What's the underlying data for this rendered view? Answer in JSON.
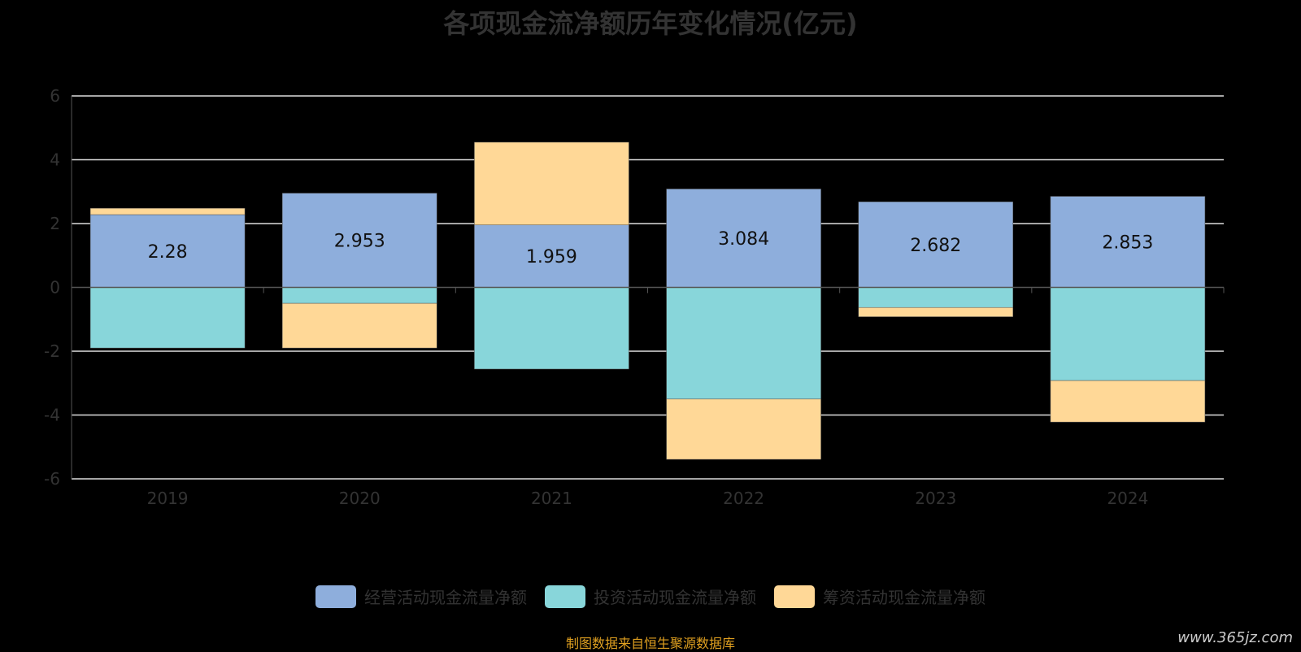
{
  "chart_data": {
    "type": "bar",
    "stacked": true,
    "title": "各项现金流净额历年变化情况(亿元)",
    "categories": [
      "2019",
      "2020",
      "2021",
      "2022",
      "2023",
      "2024"
    ],
    "series": [
      {
        "name": "经营活动现金流量净额",
        "color": "#8eaedc",
        "values": [
          2.28,
          2.953,
          1.959,
          3.084,
          2.682,
          2.853
        ],
        "labels": [
          "2.28",
          "2.953",
          "1.959",
          "3.084",
          "2.682",
          "2.853"
        ]
      },
      {
        "name": "投资活动现金流量净额",
        "color": "#88d6da",
        "values": [
          -1.9,
          -0.5,
          -2.56,
          -3.5,
          -0.63,
          -2.92
        ]
      },
      {
        "name": "筹资活动现金流量净额",
        "color": "#ffd897",
        "values": [
          0.2,
          -1.4,
          2.59,
          -1.89,
          -0.29,
          -1.3
        ]
      }
    ],
    "ylim": [
      -6,
      6
    ],
    "yticks": [
      6,
      4,
      2,
      0,
      -2,
      -4,
      -6
    ],
    "grid": true,
    "legend_position": "bottom"
  },
  "source": "制图数据来自恒生聚源数据库",
  "watermark": "www.365jz.com"
}
